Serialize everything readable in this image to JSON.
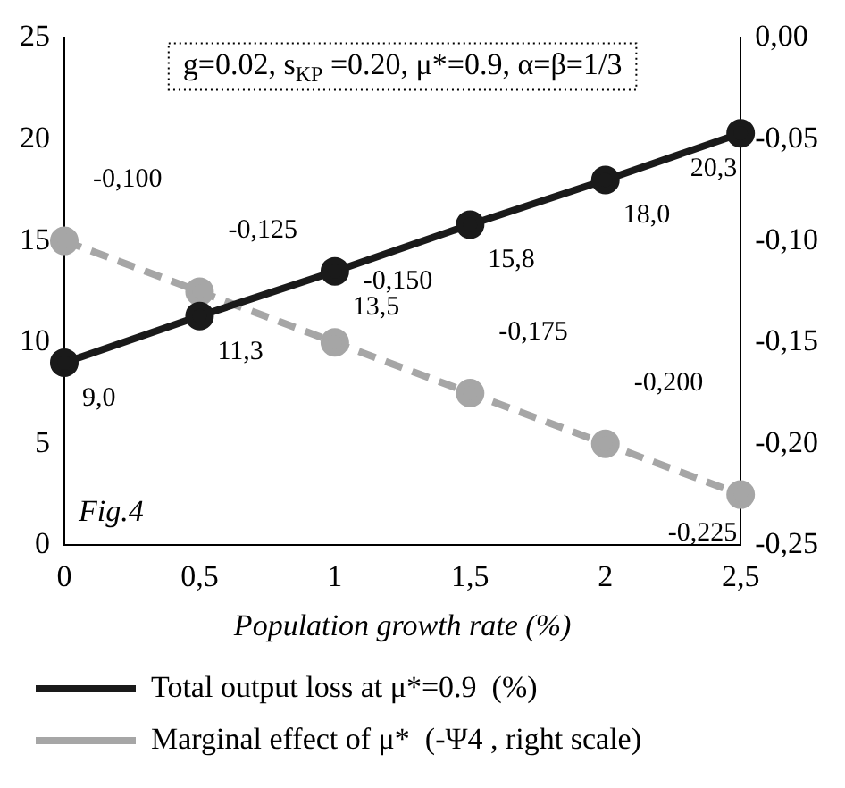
{
  "chart_data": {
    "type": "line",
    "xlabel": "Population growth rate (%)",
    "x": [
      0,
      0.5,
      1,
      1.5,
      2,
      2.5
    ],
    "xlim": [
      0,
      2.5
    ],
    "xticks": [
      0,
      {
        "value": 0.5,
        "label": "0,5"
      },
      1,
      {
        "value": 1.5,
        "label": "1,5"
      },
      2,
      {
        "value": 2.5,
        "label": "2,5"
      }
    ],
    "ylim": [
      0,
      25
    ],
    "yticks": [
      0,
      5,
      10,
      15,
      20,
      25
    ],
    "y2lim": [
      -0.25,
      0
    ],
    "y2ticks": [
      {
        "value": -0.25,
        "label": "-0,25"
      },
      {
        "value": -0.2,
        "label": "-0,20"
      },
      {
        "value": -0.15,
        "label": "-0,15"
      },
      {
        "value": -0.1,
        "label": "-0,10"
      },
      {
        "value": -0.05,
        "label": "-0,05"
      },
      {
        "value": 0,
        "label": "0,00"
      }
    ],
    "series": [
      {
        "name": "Total output loss at μ*=0.9  (%)",
        "color": "#1a1a1a",
        "line_style": "solid",
        "values": [
          9.0,
          11.3,
          13.5,
          15.8,
          18.0,
          20.3
        ],
        "value_labels": [
          "9,0",
          "11,3",
          "13,5",
          "15,8",
          "18,0",
          "20,3"
        ]
      },
      {
        "name": "Marginal effect of μ*  (-Ψ4 , right scale)",
        "color": "#a6a6a6",
        "line_style": "dashed",
        "axis": "y2",
        "values": [
          -0.1,
          -0.125,
          -0.15,
          -0.175,
          -0.2,
          -0.225
        ],
        "value_labels": [
          "-0,100",
          "-0,125",
          "-0,150",
          "-0,175",
          "-0,200",
          "-0,225"
        ]
      }
    ],
    "marker": "circle",
    "grid": false,
    "legend": "bottom",
    "annotations": [
      "g=0.02, s$_{KP}$ =0.20, μ*=0.9, α=β=1/3",
      "Fig.4"
    ]
  }
}
